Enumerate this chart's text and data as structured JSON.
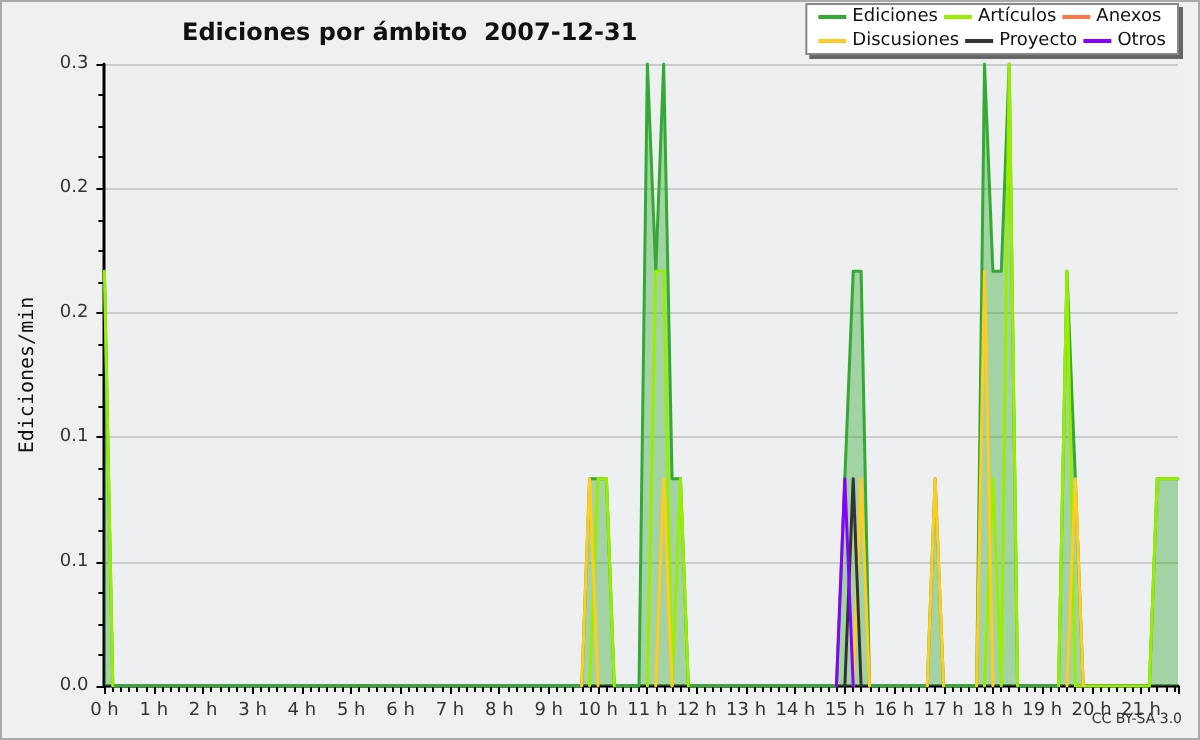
{
  "chart_data": {
    "type": "line",
    "title": "Ediciones por ámbito  2007-12-31",
    "ylabel": "Ediciones/min",
    "annotations": [
      "CC BY-SA 3.0"
    ],
    "xlim": [
      0,
      21.75
    ],
    "xticks": [
      {
        "value": 0,
        "label": "0 h"
      },
      {
        "value": 1,
        "label": "1 h"
      },
      {
        "value": 2,
        "label": "2 h"
      },
      {
        "value": 3,
        "label": "3 h"
      },
      {
        "value": 4,
        "label": "4 h"
      },
      {
        "value": 5,
        "label": "5 h"
      },
      {
        "value": 6,
        "label": "6 h"
      },
      {
        "value": 7,
        "label": "7 h"
      },
      {
        "value": 8,
        "label": "8 h"
      },
      {
        "value": 9,
        "label": "9 h"
      },
      {
        "value": 10,
        "label": "10 h"
      },
      {
        "value": 11,
        "label": "11 h"
      },
      {
        "value": 12,
        "label": "12 h"
      },
      {
        "value": 13,
        "label": "13 h"
      },
      {
        "value": 14,
        "label": "14 h"
      },
      {
        "value": 15,
        "label": "15 h"
      },
      {
        "value": 16,
        "label": "16 h"
      },
      {
        "value": 17,
        "label": "17 h"
      },
      {
        "value": 18,
        "label": "18 h"
      },
      {
        "value": 19,
        "label": "19 h"
      },
      {
        "value": 20,
        "label": "20 h"
      },
      {
        "value": 21,
        "label": "21 h"
      }
    ],
    "ylim": [
      0,
      0.3
    ],
    "yticks": [
      {
        "value": 0,
        "label": "0.0"
      },
      {
        "value": 0.06,
        "label": "0.1"
      },
      {
        "value": 0.12,
        "label": "0.1"
      },
      {
        "value": 0.18,
        "label": "0.2"
      },
      {
        "value": 0.24,
        "label": "0.2"
      },
      {
        "value": 0.3,
        "label": "0.3"
      }
    ],
    "grid": "y",
    "legend": "top right",
    "marker": "none",
    "line_style": "solid",
    "series": [
      {
        "name": "Ediciones",
        "type": "area",
        "color": "#33aa33",
        "x": [
          0,
          0.17,
          9.67,
          9.83,
          10,
          10.17,
          10.33,
          10.83,
          11,
          11.17,
          11.33,
          11.5,
          11.67,
          11.83,
          14.83,
          15,
          15.17,
          15.33,
          15.5,
          16.67,
          16.83,
          17,
          17.67,
          17.83,
          18,
          18.17,
          18.33,
          18.5,
          19.33,
          19.5,
          19.67,
          19.83,
          21.17,
          21.33,
          21.5,
          21.75
        ],
        "values": [
          0.2,
          0,
          0,
          0.1,
          0.1,
          0.1,
          0,
          0,
          0.3,
          0.2,
          0.3,
          0.1,
          0.1,
          0,
          0,
          0.1,
          0.2,
          0.2,
          0,
          0,
          0.1,
          0,
          0,
          0.3,
          0.2,
          0.2,
          0.3,
          0,
          0,
          0.2,
          0.1,
          0,
          0,
          0.1,
          0.1,
          0.1
        ]
      },
      {
        "name": "Artículos",
        "color": "#99ee00",
        "x": [
          0,
          0.17,
          5,
          9.83,
          10,
          10.17,
          10.33,
          10.67,
          11,
          11.17,
          11.33,
          11.5,
          11.67,
          11.83,
          15,
          17.83,
          18,
          18.17,
          18.33,
          18.5,
          19,
          19.33,
          19.5,
          19.67,
          21.17,
          21.33,
          21.5,
          21.75
        ],
        "values": [
          0.2,
          0,
          null,
          0,
          0.1,
          0.1,
          0,
          null,
          0,
          0.2,
          0.2,
          0,
          0.1,
          0,
          null,
          0,
          0.1,
          0,
          0.3,
          0,
          null,
          0,
          0.2,
          0,
          0,
          0.1,
          0.1,
          0.1
        ]
      },
      {
        "name": "Anexos",
        "color": "#ff7744"
      },
      {
        "name": "Discusiones",
        "color": "#ffcc22",
        "x": [
          9.67,
          9.83,
          10,
          10.67,
          11.17,
          11.33,
          11.5,
          13,
          15.17,
          15.33,
          15.5,
          16,
          16.67,
          16.83,
          17,
          17.33,
          17.67,
          17.83,
          18,
          19,
          19.5,
          19.67,
          19.83
        ],
        "values": [
          0,
          0.1,
          0,
          null,
          0,
          0.1,
          0,
          null,
          0,
          0.1,
          0,
          null,
          0,
          0.1,
          0,
          null,
          0,
          0.2,
          0,
          null,
          0,
          0.1,
          0
        ]
      },
      {
        "name": "Proyecto",
        "color": "#333333",
        "x": [
          15,
          15.17,
          15.33
        ],
        "values": [
          0,
          0.1,
          0
        ]
      },
      {
        "name": "Otros",
        "color": "#8800ff",
        "x": [
          14.83,
          15,
          15.17
        ],
        "values": [
          0,
          0.1,
          0
        ]
      }
    ]
  }
}
